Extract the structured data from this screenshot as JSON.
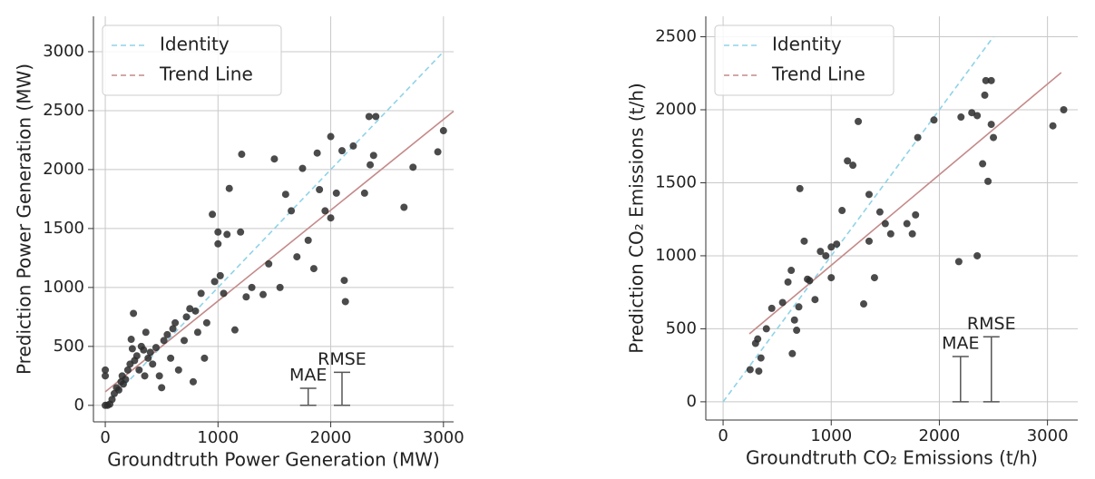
{
  "chart_data": [
    {
      "type": "scatter",
      "xlabel": "Groundtruth Power Generation (MW)",
      "ylabel": "Prediction Power Generation (MW)",
      "xlim": [
        -105,
        3090
      ],
      "ylim": [
        -140,
        3300
      ],
      "xticks": [
        0,
        1000,
        2000,
        3000
      ],
      "yticks": [
        0,
        500,
        1000,
        1500,
        2000,
        2500,
        3000
      ],
      "grid": true,
      "legend": "upper left",
      "point_color": "#2b2b2b",
      "x": [
        0,
        0,
        0,
        20,
        40,
        60,
        80,
        100,
        120,
        140,
        150,
        160,
        180,
        200,
        220,
        230,
        240,
        250,
        260,
        280,
        300,
        320,
        340,
        350,
        360,
        380,
        400,
        420,
        450,
        480,
        500,
        520,
        550,
        580,
        600,
        620,
        650,
        700,
        720,
        750,
        780,
        800,
        820,
        850,
        880,
        900,
        950,
        970,
        1000,
        1000,
        1020,
        1050,
        1080,
        1100,
        1150,
        1200,
        1210,
        1250,
        1300,
        1400,
        1450,
        1500,
        1550,
        1600,
        1650,
        1700,
        1750,
        1800,
        1850,
        1880,
        1900,
        1950,
        2000,
        2000,
        2050,
        2100,
        2120,
        2130,
        2200,
        2300,
        2340,
        2350,
        2380,
        2400,
        2650,
        2730,
        2950,
        3000
      ],
      "y": [
        300,
        250,
        0,
        0,
        10,
        50,
        100,
        150,
        130,
        200,
        250,
        180,
        220,
        300,
        350,
        560,
        480,
        780,
        380,
        420,
        300,
        500,
        470,
        250,
        620,
        400,
        450,
        350,
        490,
        250,
        150,
        550,
        600,
        400,
        650,
        700,
        300,
        550,
        750,
        820,
        200,
        800,
        620,
        950,
        400,
        700,
        1620,
        1050,
        1470,
        1370,
        1100,
        950,
        1450,
        1840,
        640,
        1470,
        2130,
        920,
        1000,
        940,
        1200,
        2090,
        1000,
        1790,
        1650,
        1260,
        2010,
        1400,
        1160,
        2140,
        1830,
        1650,
        2280,
        1590,
        1800,
        2160,
        1060,
        880,
        2200,
        1800,
        2450,
        2040,
        2120,
        2450,
        1680,
        2020,
        2150,
        2330
      ],
      "series": [
        {
          "name": "Identity",
          "color": "#8fd3e8",
          "dash": true,
          "x": [
            0,
            3000
          ],
          "y": [
            0,
            3000
          ]
        },
        {
          "name": "Trend Line",
          "color": "#c48a8a",
          "dash": false,
          "x": [
            0,
            3090
          ],
          "y": [
            115,
            2495
          ]
        }
      ],
      "error_bars": [
        {
          "label": "MAE",
          "x": 1800,
          "value": 145
        },
        {
          "label": "RMSE",
          "x": 2100,
          "value": 280
        }
      ]
    },
    {
      "type": "scatter",
      "xlabel": "Groundtruth CO₂ Emissions (t/h)",
      "ylabel": "Prediction CO₂ Emissions (t/h)",
      "xlim": [
        -160,
        3280
      ],
      "ylim": [
        -125,
        2640
      ],
      "xticks": [
        0,
        1000,
        2000,
        3000
      ],
      "yticks": [
        0,
        500,
        1000,
        1500,
        2000,
        2500
      ],
      "grid": true,
      "legend": "upper left",
      "point_color": "#2b2b2b",
      "x": [
        250,
        300,
        320,
        330,
        350,
        400,
        450,
        550,
        600,
        630,
        640,
        660,
        680,
        700,
        710,
        750,
        780,
        800,
        850,
        900,
        950,
        1000,
        1000,
        1050,
        1100,
        1150,
        1200,
        1250,
        1300,
        1350,
        1350,
        1400,
        1450,
        1500,
        1550,
        1700,
        1750,
        1780,
        1800,
        1950,
        2180,
        2200,
        2300,
        2350,
        2400,
        2420,
        2430,
        2450,
        2480,
        2480,
        2500,
        3050,
        3150,
        2350
      ],
      "y": [
        220,
        400,
        430,
        210,
        300,
        500,
        640,
        680,
        820,
        900,
        330,
        560,
        490,
        650,
        1460,
        1100,
        840,
        830,
        700,
        1030,
        1000,
        850,
        1060,
        1080,
        1310,
        1650,
        1620,
        1920,
        670,
        1420,
        1100,
        850,
        1300,
        1220,
        1150,
        1220,
        1150,
        1280,
        1810,
        1930,
        960,
        1950,
        1980,
        1000,
        1630,
        2100,
        2200,
        1510,
        2200,
        1900,
        1810,
        1890,
        2000,
        1960
      ],
      "series": [
        {
          "name": "Identity",
          "color": "#8fd3e8",
          "dash": true,
          "x": [
            0,
            2500
          ],
          "y": [
            0,
            2500
          ]
        },
        {
          "name": "Trend Line",
          "color": "#c48a8a",
          "dash": false,
          "x": [
            243,
            3127
          ],
          "y": [
            465,
            2255
          ]
        }
      ],
      "error_bars": [
        {
          "label": "MAE",
          "x": 2196,
          "value": 310
        },
        {
          "label": "RMSE",
          "x": 2481,
          "value": 445
        }
      ]
    }
  ]
}
